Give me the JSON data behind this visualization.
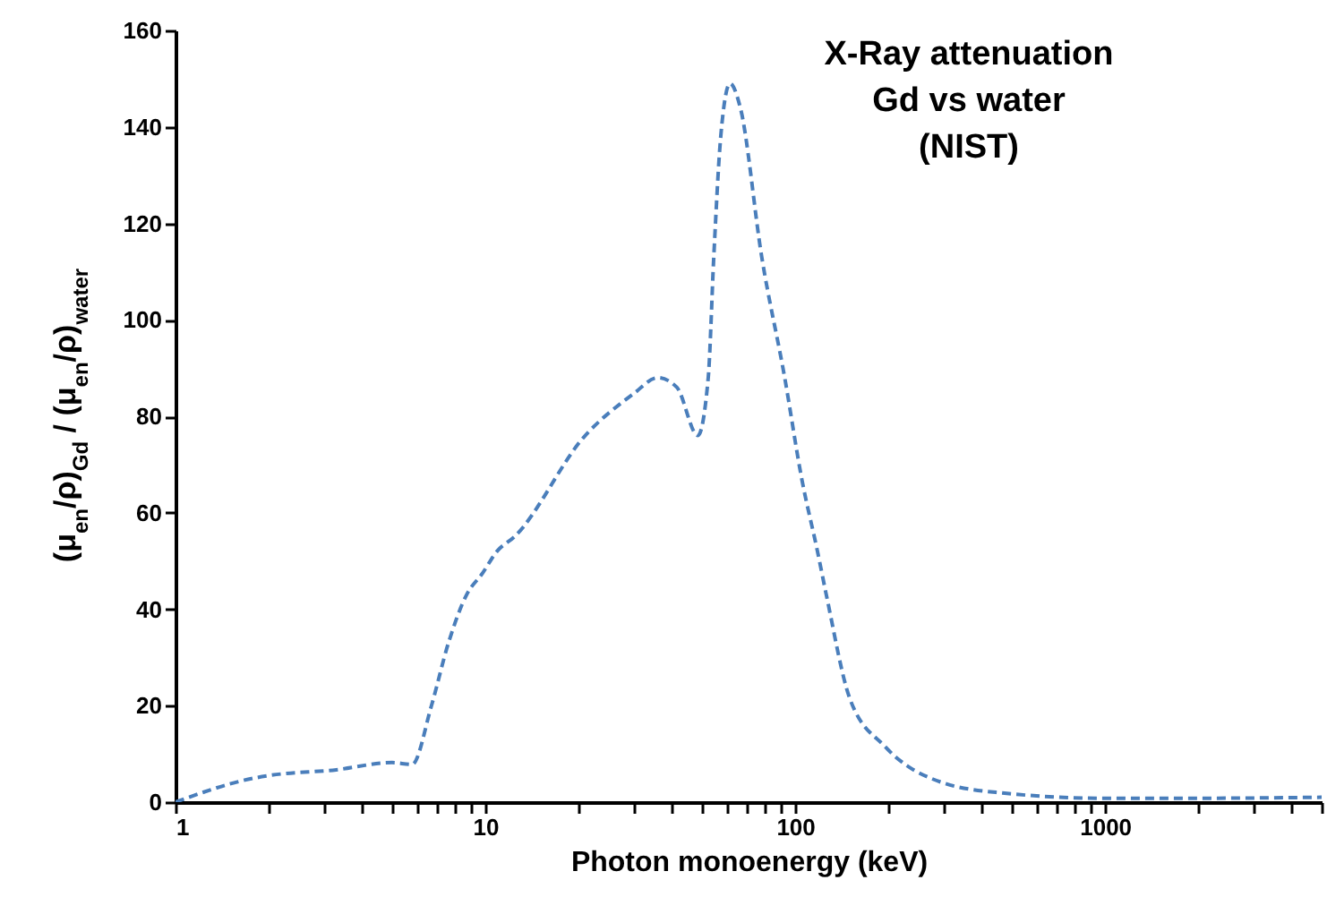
{
  "chart_data": {
    "type": "line",
    "title": "X-Ray attenuation\nGd vs water\n(NIST)",
    "xlabel": "Photon monoenergy (keV)",
    "ylabel": "(μ$_{en}$/ρ)$_{Gd}$ / (μ$_{en}$/ρ)$_{water}$",
    "log": "x",
    "grid": false,
    "line_style": "dashed",
    "marker": "none",
    "xlim": [
      1,
      5000
    ],
    "ylim": [
      0,
      160
    ],
    "xticks": [
      1,
      {
        "value": 2,
        "label": null
      },
      {
        "value": 3,
        "label": null
      },
      {
        "value": 4,
        "label": null
      },
      {
        "value": 5,
        "label": null
      },
      {
        "value": 6,
        "label": null
      },
      {
        "value": 7,
        "label": null
      },
      {
        "value": 8,
        "label": null
      },
      {
        "value": 9,
        "label": null
      },
      10,
      {
        "value": 20,
        "label": null
      },
      {
        "value": 30,
        "label": null
      },
      {
        "value": 40,
        "label": null
      },
      {
        "value": 50,
        "label": null
      },
      {
        "value": 60,
        "label": null
      },
      {
        "value": 70,
        "label": null
      },
      {
        "value": 80,
        "label": null
      },
      {
        "value": 90,
        "label": null
      },
      100,
      {
        "value": 200,
        "label": null
      },
      {
        "value": 300,
        "label": null
      },
      {
        "value": 400,
        "label": null
      },
      {
        "value": 500,
        "label": null
      },
      {
        "value": 600,
        "label": null
      },
      {
        "value": 700,
        "label": null
      },
      {
        "value": 800,
        "label": null
      },
      {
        "value": 900,
        "label": null
      },
      1000,
      {
        "value": 2000,
        "label": null
      },
      {
        "value": 3000,
        "label": null
      },
      {
        "value": 4000,
        "label": null
      },
      {
        "value": 5000,
        "label": null
      }
    ],
    "yticks": [
      0,
      20,
      40,
      60,
      80,
      100,
      120,
      140,
      160
    ],
    "series": [
      {
        "color": "#4a7ebb",
        "x": [
          1,
          1.8,
          2,
          3.3,
          5,
          5.8,
          6.7,
          7.6,
          8.7,
          9.8,
          10.9,
          12.4,
          21,
          30,
          36,
          41.5,
          48.5,
          52.4,
          54.6,
          57.5,
          61.6,
          66.5,
          78,
          92.5,
          105,
          118,
          126,
          150,
          195,
          300,
          466,
          1000,
          2000,
          5000
        ],
        "values": [
          0,
          5,
          5.5,
          6.7,
          8.2,
          7.8,
          20,
          33,
          43,
          47.5,
          52,
          55,
          76,
          84.6,
          88,
          86,
          76,
          88,
          113,
          138,
          149,
          144,
          113,
          88,
          67,
          52,
          43,
          21.5,
          11.5,
          4,
          1.9,
          0.8,
          0.8,
          1
        ]
      }
    ]
  }
}
